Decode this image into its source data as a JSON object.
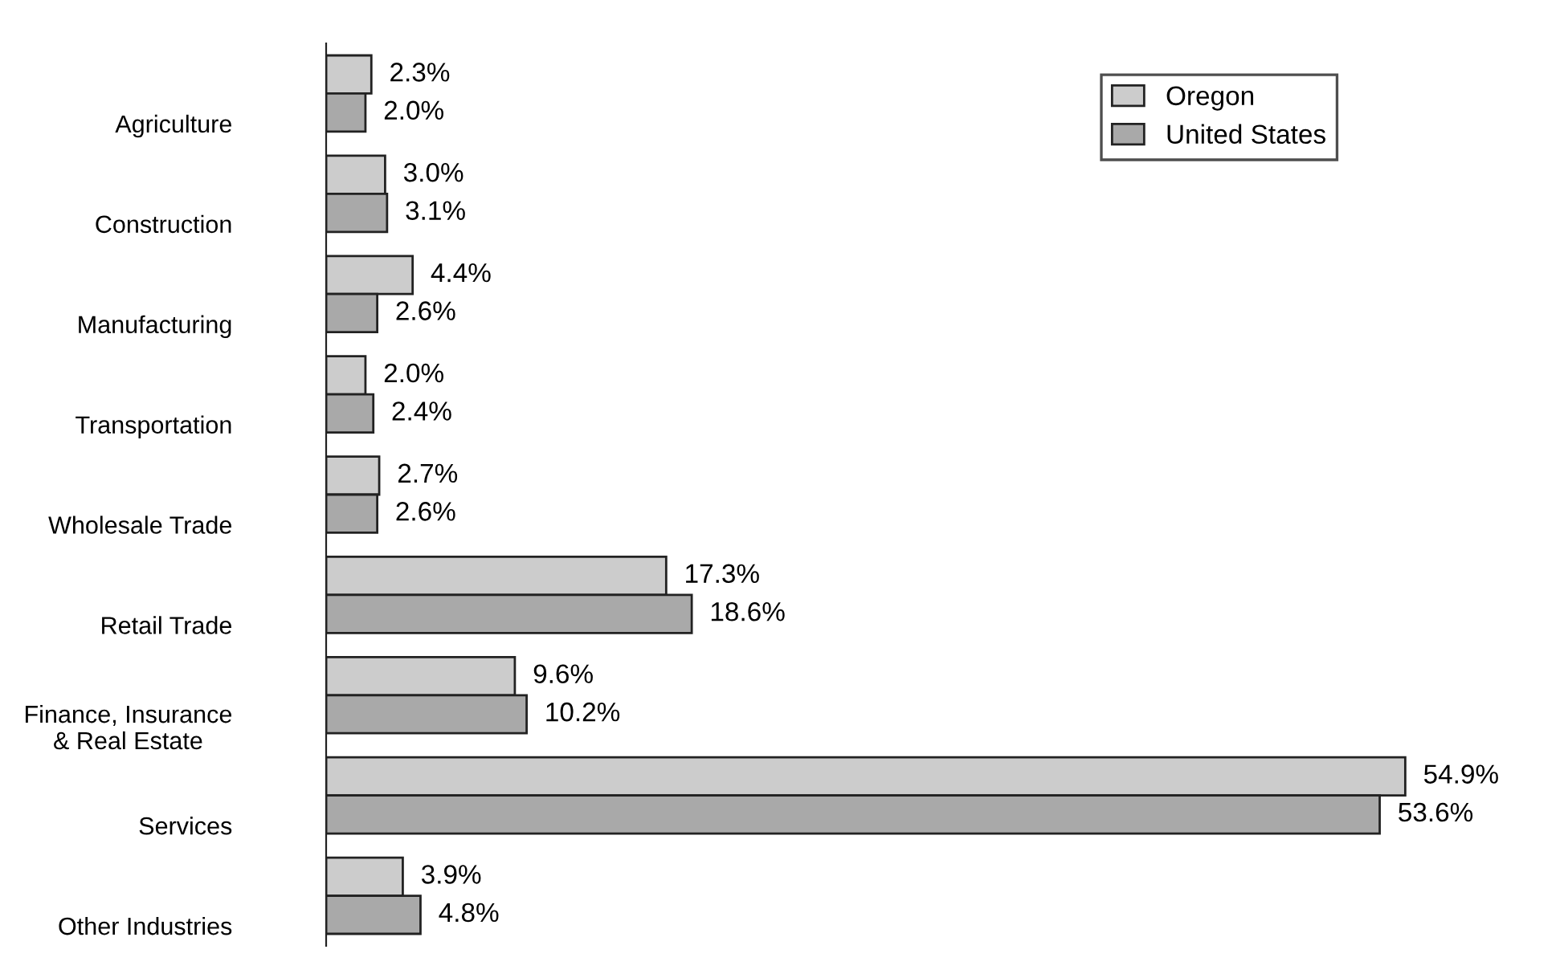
{
  "chart_data": {
    "type": "bar",
    "orientation": "horizontal",
    "categories": [
      "Agriculture",
      "Construction",
      "Manufacturing",
      "Transportation",
      "Wholesale Trade",
      "Retail Trade",
      "Finance, Insurance\n& Real Estate",
      "Services",
      "Other Industries"
    ],
    "series": [
      {
        "name": "Oregon",
        "color": "#cccccc",
        "values": [
          2.3,
          3.0,
          4.4,
          2.0,
          2.7,
          17.3,
          9.6,
          54.9,
          3.9
        ],
        "value_labels": [
          "2.3%",
          "3.0%",
          "4.4%",
          "2.0%",
          "2.7%",
          "17.3%",
          "9.6%",
          "54.9%",
          "3.9%"
        ]
      },
      {
        "name": "United States",
        "color": "#a9a9a9",
        "values": [
          2.0,
          3.1,
          2.6,
          2.4,
          2.6,
          18.6,
          10.2,
          53.6,
          4.8
        ],
        "value_labels": [
          "2.0%",
          "3.1%",
          "2.6%",
          "2.4%",
          "2.6%",
          "18.6%",
          "10.2%",
          "53.6%",
          "4.8%"
        ]
      }
    ],
    "legend": "top right",
    "grid": false,
    "tick_labels": "y"
  }
}
